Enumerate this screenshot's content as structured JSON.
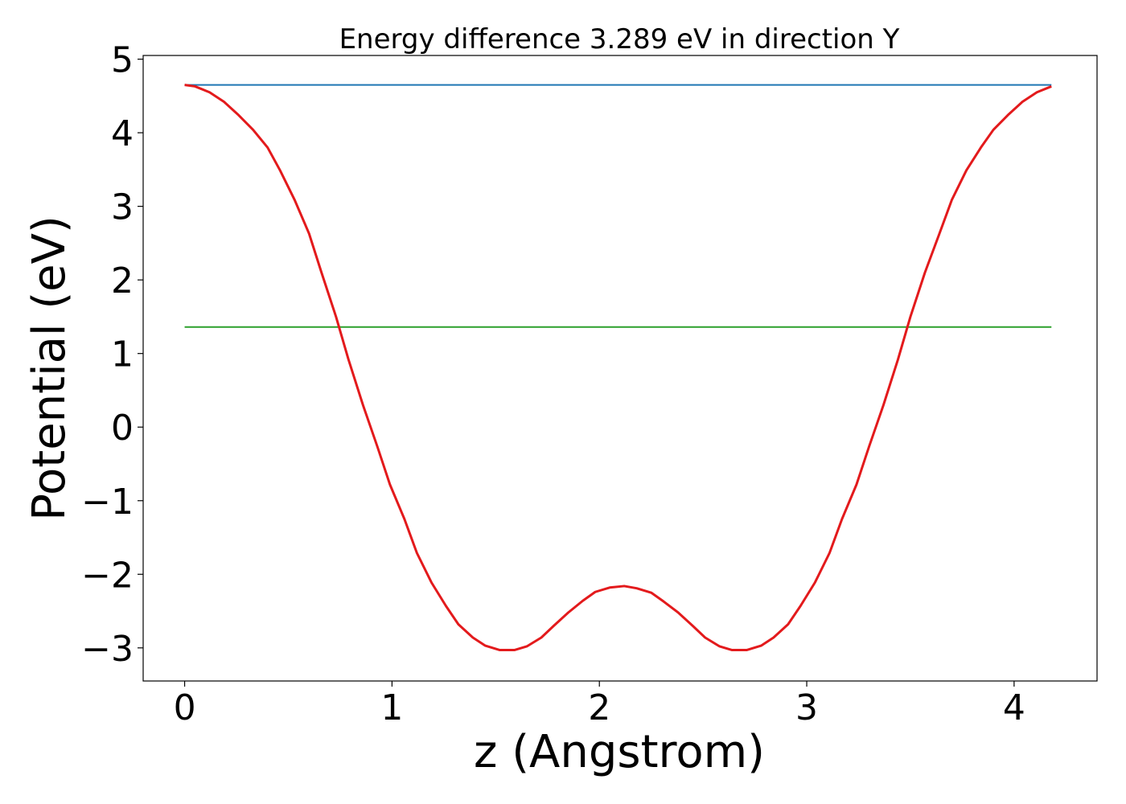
{
  "chart_data": {
    "type": "line",
    "title": "Energy difference 3.289 eV in direction Y",
    "xlabel": "z (Angstrom)",
    "ylabel": "Potential (eV)",
    "xlim": [
      -0.2,
      4.4
    ],
    "ylim": [
      -3.45,
      5.05
    ],
    "xticks": [
      0,
      1,
      2,
      3,
      4
    ],
    "xtick_labels": [
      "0",
      "1",
      "2",
      "3",
      "4"
    ],
    "yticks": [
      -3,
      -2,
      -1,
      0,
      1,
      2,
      3,
      4,
      5
    ],
    "ytick_labels": [
      "−3",
      "−2",
      "−1",
      "0",
      "1",
      "2",
      "3",
      "4",
      "5"
    ],
    "grid": false,
    "legend": "none",
    "series": [
      {
        "color": "#1f77b4",
        "x": [
          0,
          4.18
        ],
        "y": [
          4.65,
          4.65
        ]
      },
      {
        "color": "#2ca02c",
        "x": [
          0,
          4.18
        ],
        "y": [
          1.36,
          1.36
        ]
      },
      {
        "color": "#e31a1c",
        "x": [
          0.0,
          0.05,
          0.12,
          0.19,
          0.26,
          0.33,
          0.4,
          0.46,
          0.53,
          0.6,
          0.66,
          0.73,
          0.79,
          0.86,
          0.93,
          0.99,
          1.06,
          1.12,
          1.19,
          1.26,
          1.32,
          1.39,
          1.45,
          1.52,
          1.59,
          1.65,
          1.72,
          1.78,
          1.85,
          1.92,
          1.98,
          2.05,
          2.12,
          2.18,
          2.25,
          2.31,
          2.38,
          2.45,
          2.51,
          2.58,
          2.64,
          2.71,
          2.78,
          2.84,
          2.91,
          2.97,
          3.04,
          3.11,
          3.17,
          3.24,
          3.3,
          3.37,
          3.44,
          3.5,
          3.57,
          3.64,
          3.7,
          3.77,
          3.84,
          3.9,
          3.97,
          4.04,
          4.11,
          4.18
        ],
        "y": [
          4.65,
          4.63,
          4.55,
          4.42,
          4.24,
          4.04,
          3.8,
          3.49,
          3.09,
          2.63,
          2.1,
          1.5,
          0.92,
          0.3,
          -0.27,
          -0.78,
          -1.25,
          -1.71,
          -2.11,
          -2.43,
          -2.68,
          -2.86,
          -2.97,
          -3.03,
          -3.03,
          -2.98,
          -2.86,
          -2.7,
          -2.52,
          -2.36,
          -2.24,
          -2.18,
          -2.16,
          -2.19,
          -2.25,
          -2.37,
          -2.52,
          -2.7,
          -2.86,
          -2.98,
          -3.03,
          -3.03,
          -2.97,
          -2.86,
          -2.68,
          -2.43,
          -2.11,
          -1.71,
          -1.25,
          -0.78,
          -0.27,
          0.3,
          0.92,
          1.5,
          2.1,
          2.63,
          3.09,
          3.49,
          3.8,
          4.04,
          4.24,
          4.42,
          4.55,
          4.63
        ]
      }
    ]
  }
}
